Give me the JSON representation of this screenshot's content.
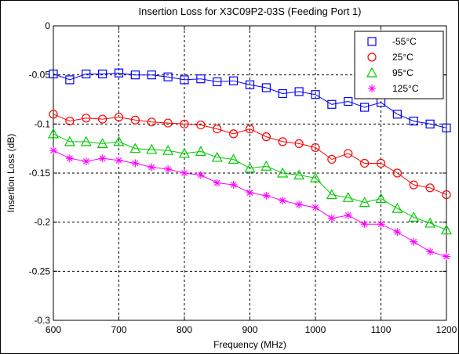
{
  "chart_data": {
    "type": "line",
    "title": "Insertion Loss for X3C09P2-03S (Feeding Port 1)",
    "xlabel": "Frequency (MHz)",
    "ylabel": "Insertion Loss (dB)",
    "xlim": [
      600,
      1200
    ],
    "ylim": [
      -0.3,
      0
    ],
    "xticks": [
      "600",
      "700",
      "800",
      "900",
      "1000",
      "1100",
      "1200"
    ],
    "xtick_values": [
      600,
      700,
      800,
      900,
      1000,
      1100,
      1200
    ],
    "yticks": [
      "0",
      "-0.05",
      "-0.1",
      "-0.15",
      "-0.2",
      "-0.25",
      "-0.3"
    ],
    "ytick_values": [
      0,
      -0.05,
      -0.1,
      -0.15,
      -0.2,
      -0.25,
      -0.3
    ],
    "grid": true,
    "legend_position": "top-right",
    "x": [
      600,
      625,
      650,
      675,
      700,
      725,
      750,
      775,
      800,
      825,
      850,
      875,
      900,
      925,
      950,
      975,
      1000,
      1025,
      1050,
      1075,
      1100,
      1125,
      1150,
      1175,
      1200
    ],
    "series": [
      {
        "name": "-55°C",
        "color": "#0000ff",
        "marker": "square",
        "values": [
          -0.049,
          -0.055,
          -0.049,
          -0.049,
          -0.048,
          -0.05,
          -0.05,
          -0.052,
          -0.055,
          -0.054,
          -0.057,
          -0.056,
          -0.06,
          -0.063,
          -0.069,
          -0.067,
          -0.07,
          -0.08,
          -0.077,
          -0.083,
          -0.078,
          -0.09,
          -0.097,
          -0.1,
          -0.104
        ]
      },
      {
        "name": "25°C",
        "color": "#ff0000",
        "marker": "circle",
        "values": [
          -0.09,
          -0.097,
          -0.094,
          -0.095,
          -0.093,
          -0.096,
          -0.098,
          -0.099,
          -0.1,
          -0.101,
          -0.105,
          -0.11,
          -0.105,
          -0.113,
          -0.118,
          -0.12,
          -0.124,
          -0.136,
          -0.13,
          -0.14,
          -0.14,
          -0.15,
          -0.162,
          -0.165,
          -0.172
        ]
      },
      {
        "name": "95°C",
        "color": "#00cc00",
        "marker": "triangle",
        "values": [
          -0.11,
          -0.118,
          -0.118,
          -0.12,
          -0.118,
          -0.125,
          -0.126,
          -0.127,
          -0.13,
          -0.128,
          -0.134,
          -0.136,
          -0.145,
          -0.143,
          -0.15,
          -0.152,
          -0.155,
          -0.172,
          -0.175,
          -0.18,
          -0.176,
          -0.186,
          -0.195,
          -0.201,
          -0.208
        ]
      },
      {
        "name": "125°C",
        "color": "#ff00ff",
        "marker": "star",
        "values": [
          -0.127,
          -0.135,
          -0.138,
          -0.135,
          -0.137,
          -0.14,
          -0.144,
          -0.146,
          -0.15,
          -0.152,
          -0.16,
          -0.162,
          -0.17,
          -0.173,
          -0.178,
          -0.182,
          -0.185,
          -0.196,
          -0.193,
          -0.202,
          -0.202,
          -0.21,
          -0.22,
          -0.23,
          -0.235
        ]
      }
    ]
  }
}
